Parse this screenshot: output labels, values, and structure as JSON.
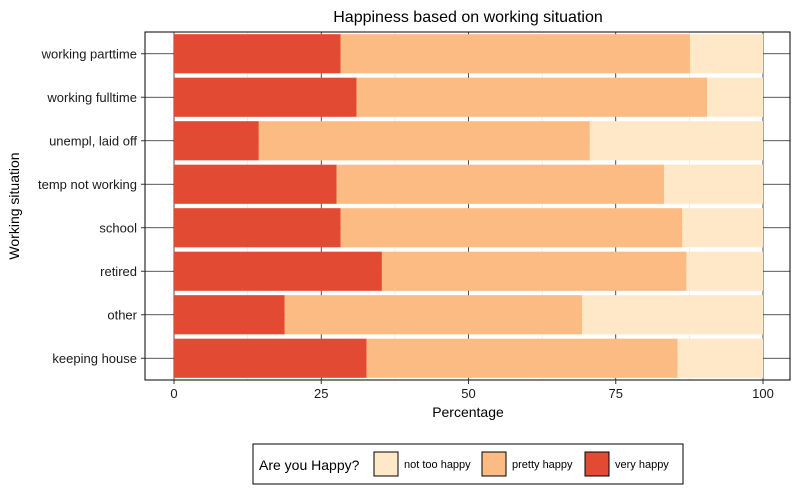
{
  "chart_data": {
    "type": "bar",
    "orientation": "horizontal",
    "stacked": true,
    "title": "Happiness based on working situation",
    "xlabel": "Percentage",
    "ylabel": "Working situation",
    "xlim": [
      0,
      100
    ],
    "x_ticks": [
      "0",
      "25",
      "50",
      "75",
      "100"
    ],
    "categories": [
      "working parttime",
      "working fulltime",
      "unempl, laid off",
      "temp not working",
      "school",
      "retired",
      "other",
      "keeping house"
    ],
    "series": [
      {
        "name": "very happy",
        "color": "#e34a33",
        "values": [
          28.3,
          31.0,
          14.4,
          27.6,
          28.3,
          35.3,
          18.8,
          32.7
        ]
      },
      {
        "name": "pretty happy",
        "color": "#fdbb84",
        "values": [
          59.3,
          59.5,
          56.2,
          55.6,
          58.0,
          51.7,
          50.5,
          52.8
        ]
      },
      {
        "name": "not too happy",
        "color": "#fee8c8",
        "values": [
          12.4,
          9.5,
          29.4,
          16.8,
          13.7,
          13.0,
          30.7,
          14.5
        ]
      }
    ],
    "grid": true,
    "legend": {
      "title": "Are you Happy?",
      "position": "bottom",
      "order": [
        "not too happy",
        "pretty happy",
        "very happy"
      ]
    }
  }
}
